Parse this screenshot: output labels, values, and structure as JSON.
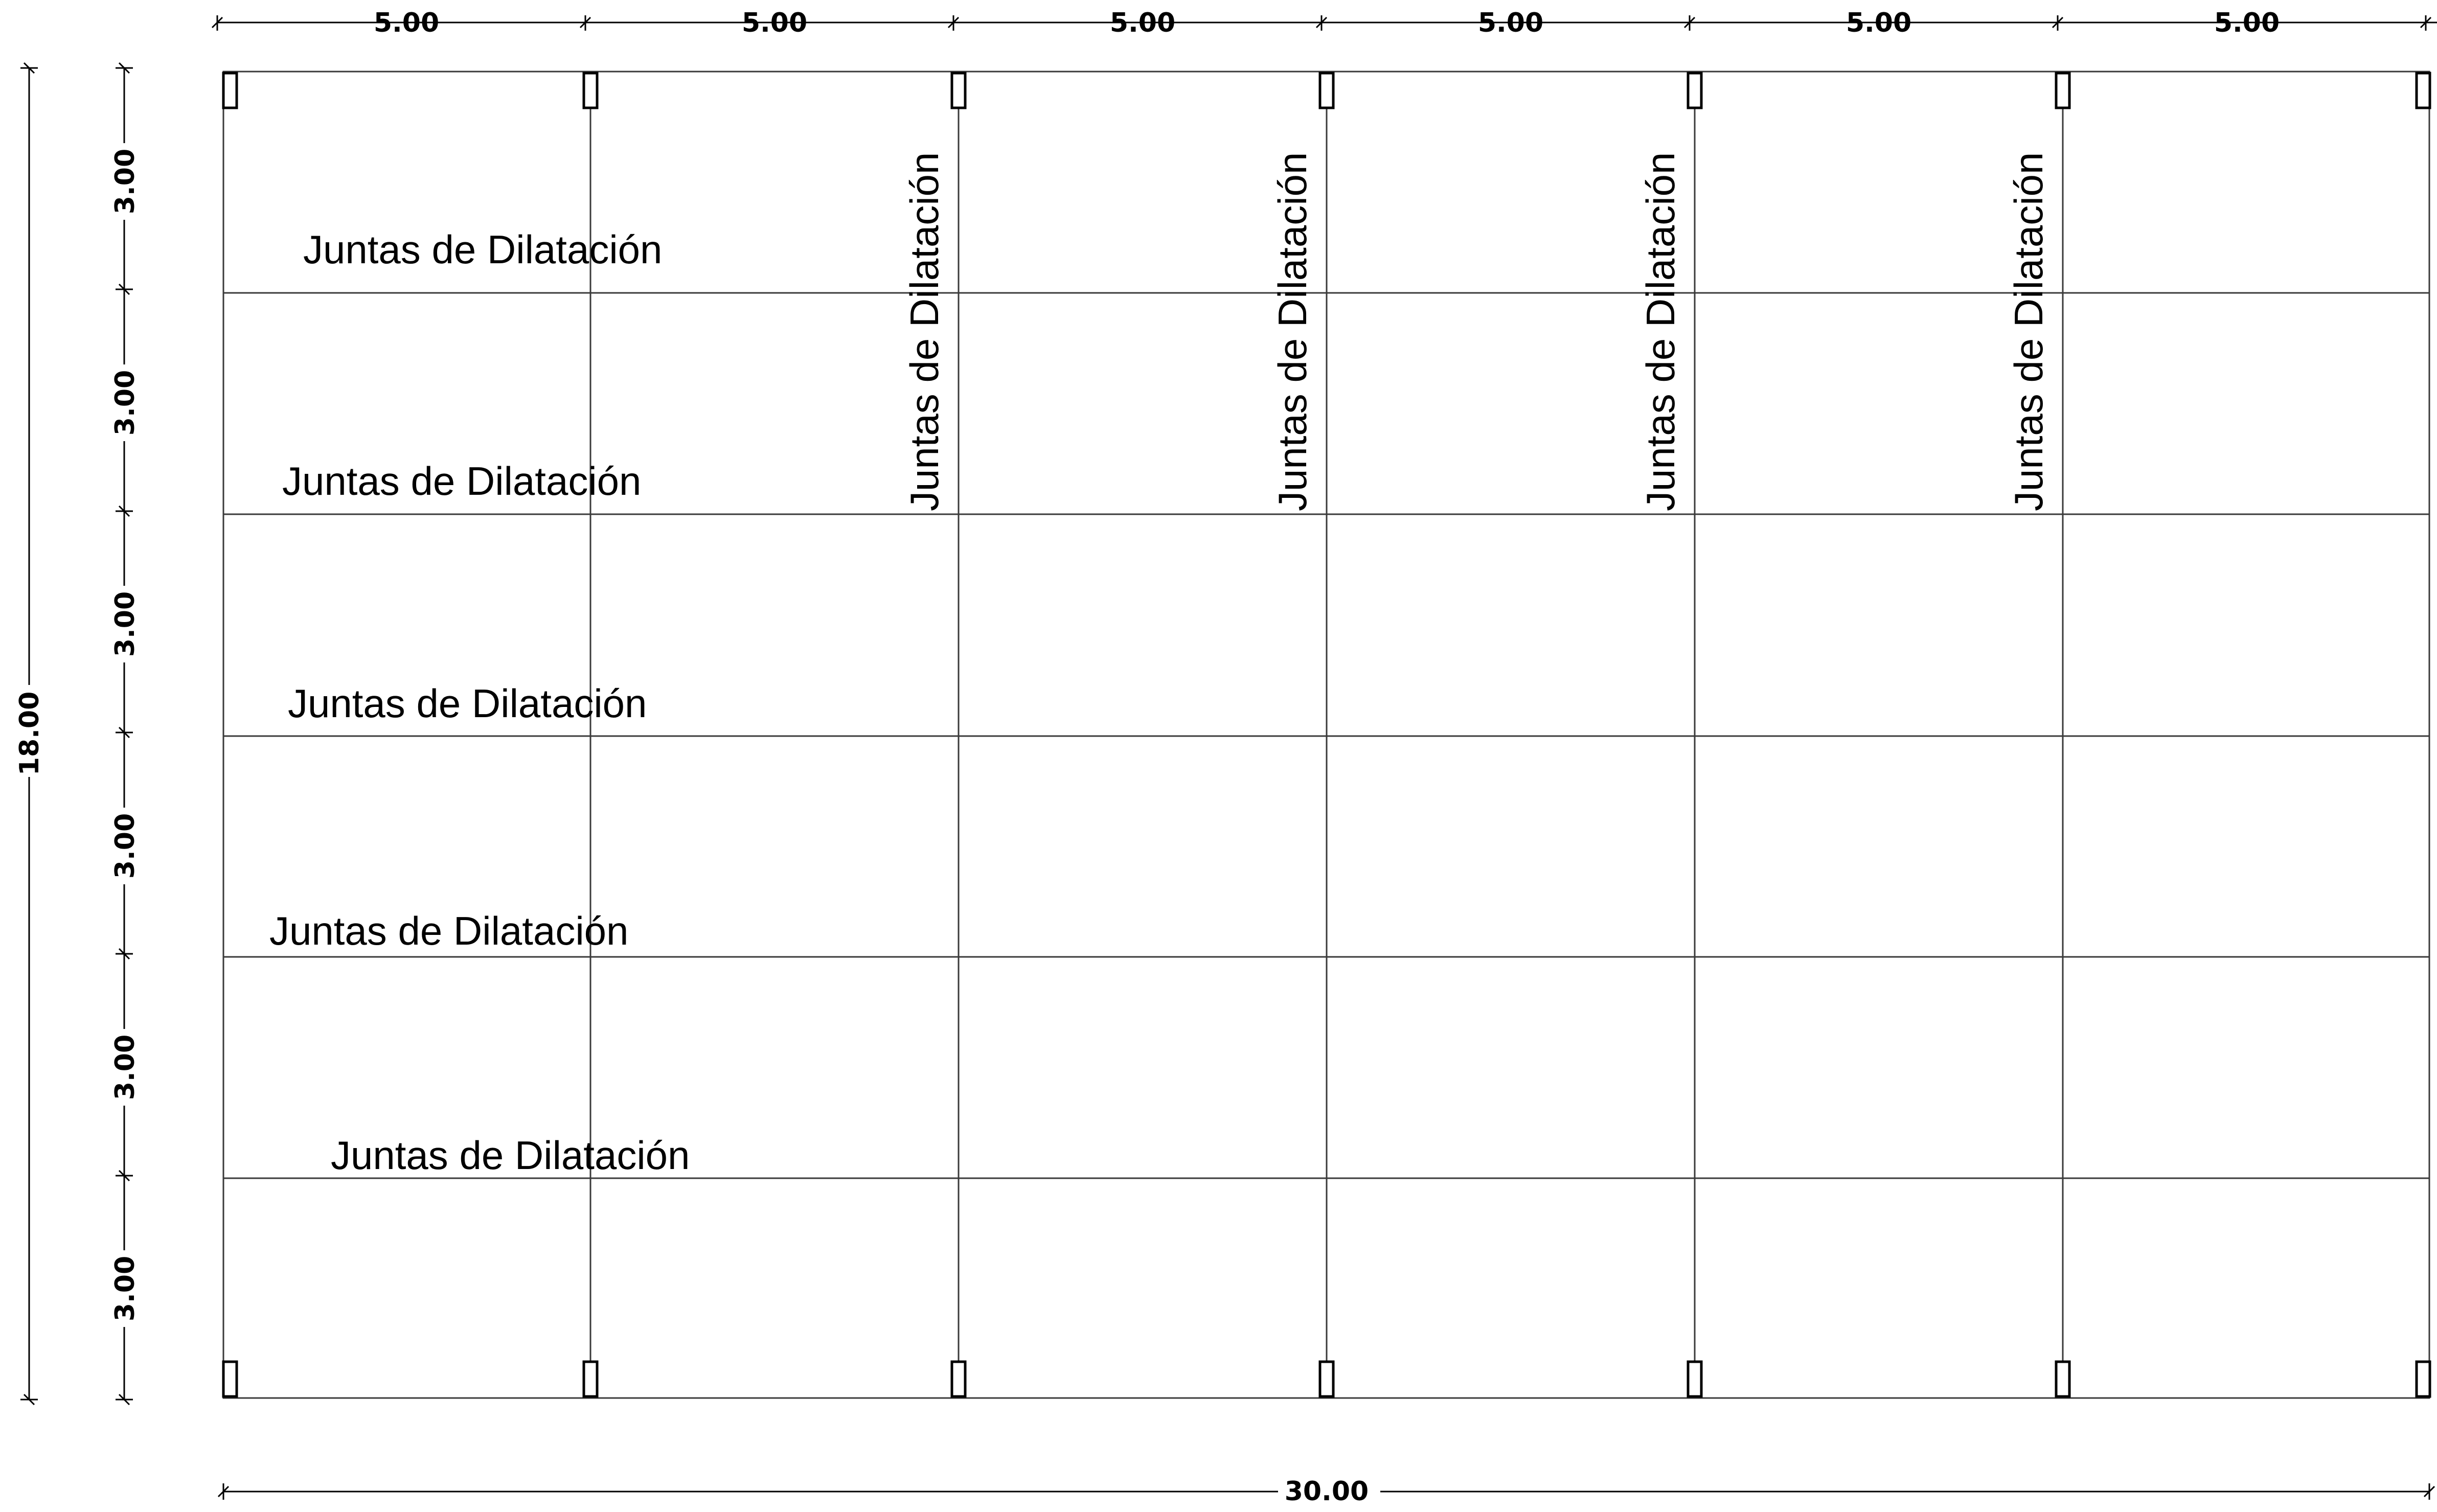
{
  "top_dimensions": [
    "5.00",
    "5.00",
    "5.00",
    "5.00",
    "5.00",
    "5.00"
  ],
  "bottom_total": "30.00",
  "left_total": "18.00",
  "row_dimensions": [
    "3.00",
    "3.00",
    "3.00",
    "3.00",
    "3.00",
    "3.00"
  ],
  "horizontal_joint_labels": [
    "Juntas de Dilatación",
    "Juntas de Dilatación",
    "Juntas de Dilatación",
    "Juntas de Dilatación",
    "Juntas de Dilatación"
  ],
  "vertical_joint_labels": [
    "Juntas de Dilatación",
    "Juntas de Dilatación",
    "Juntas de Dilatación",
    "Juntas de Dilatación"
  ]
}
